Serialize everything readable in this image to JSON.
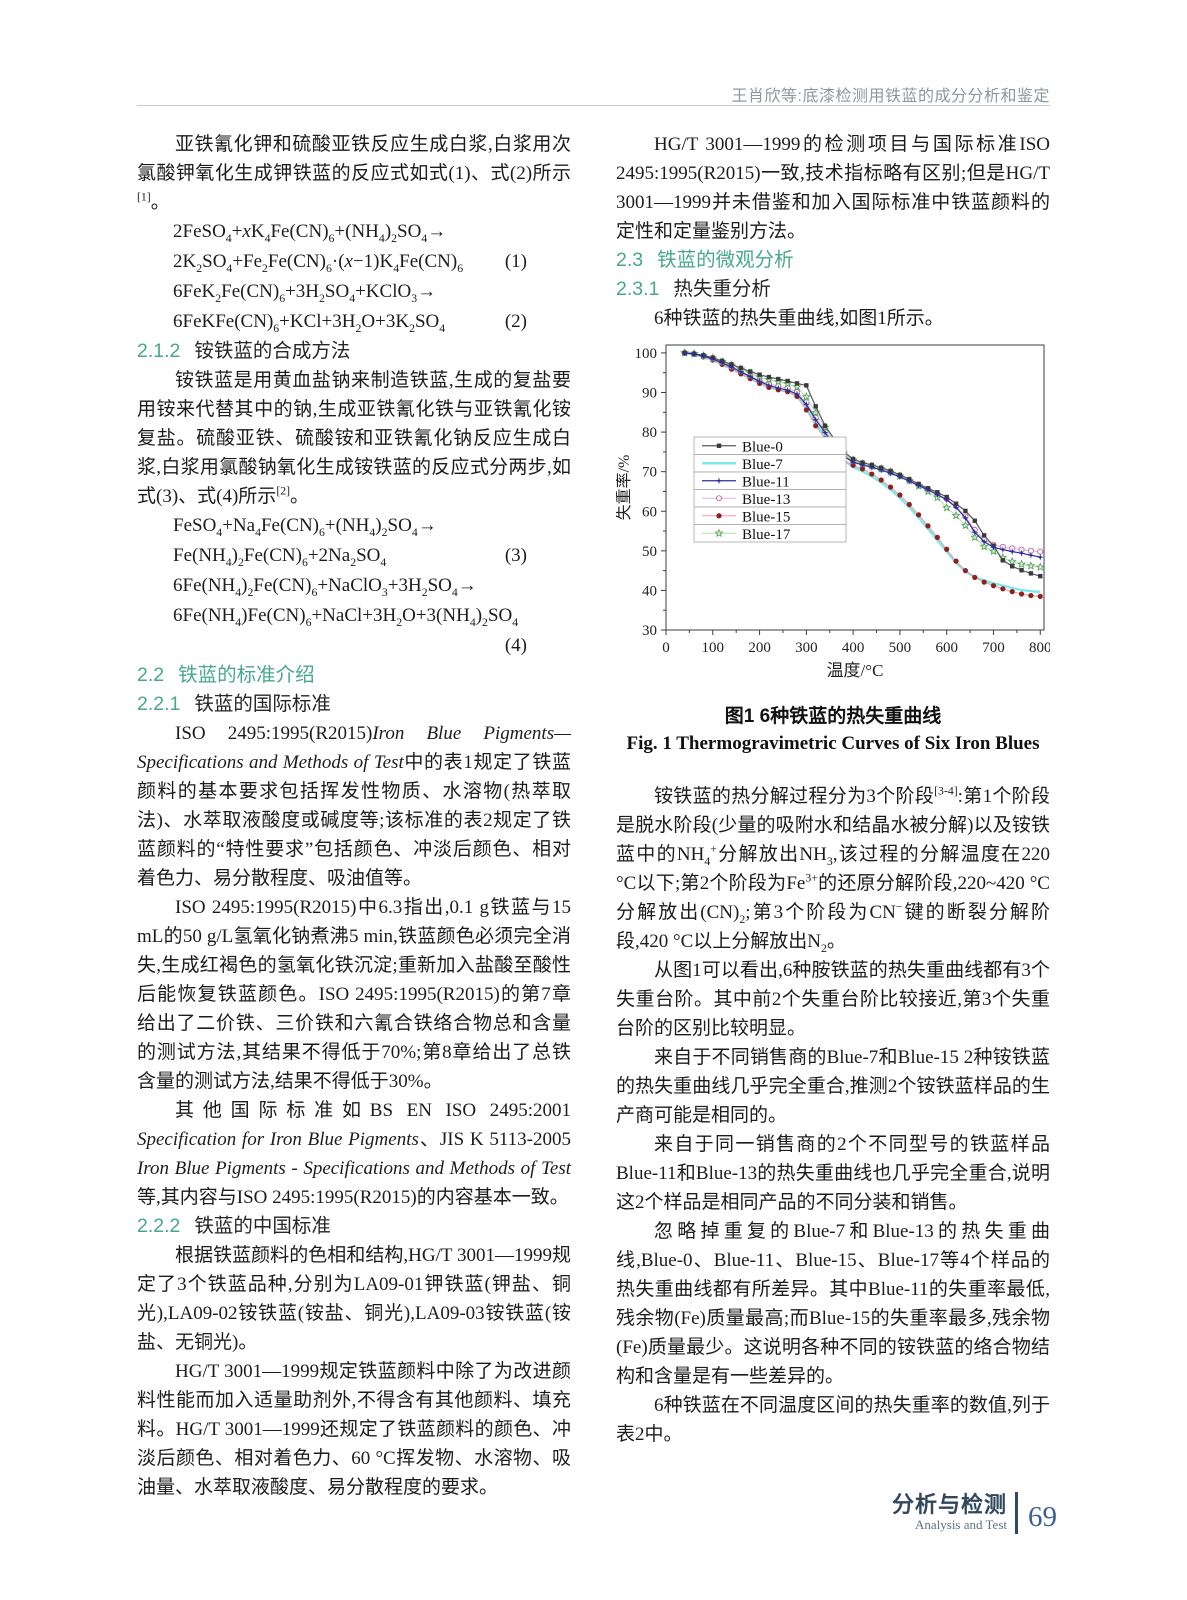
{
  "header": {
    "running_head": "王肖欣等:底漆检测用铁蓝的成分分析和鉴定"
  },
  "left": {
    "p_intro": "亚铁氰化钾和硫酸亚铁反应生成白浆,白浆用次氯酸钾氧化生成钾铁蓝的反应式如式(1)、式(2)所示<sup>[1]</sup>。",
    "eqA": [
      {
        "body": "2FeSO<sub>4</sub>+<i>x</i>K<sub>4</sub>Fe(CN)<sub>6</sub>+(NH<sub>4</sub>)<sub>2</sub>SO<sub>4</sub>→",
        "num": ""
      },
      {
        "body": "2K<sub>2</sub>SO<sub>4</sub>+Fe<sub>2</sub>Fe(CN)<sub>6</sub>·(<i>x</i>−1)K<sub>4</sub>Fe(CN)<sub>6</sub>",
        "num": "(1)"
      },
      {
        "body": "6FeK<sub>2</sub>Fe(CN)<sub>6</sub>+3H<sub>2</sub>SO<sub>4</sub>+KClO<sub>3</sub>→",
        "num": ""
      },
      {
        "body": "6FeKFe(CN)<sub>6</sub>+KCl+3H<sub>2</sub>O+3K<sub>2</sub>SO<sub>4</sub>",
        "num": "(2)"
      }
    ],
    "sec212": {
      "num": "2.1.2",
      "title": "铵铁蓝的合成方法"
    },
    "p_212": "铵铁蓝是用黄血盐钠来制造铁蓝,生成的复盐要用铵来代替其中的钠,生成亚铁氰化铁与亚铁氰化铵复盐。硫酸亚铁、硫酸铵和亚铁氰化钠反应生成白浆,白浆用氯酸钠氧化生成铵铁蓝的反应式分两步,如式(3)、式(4)所示<sup>[2]</sup>。",
    "eqB": [
      {
        "body": "FeSO<sub>4</sub>+Na<sub>4</sub>Fe(CN)<sub>6</sub>+(NH<sub>4</sub>)<sub>2</sub>SO<sub>4</sub>→",
        "num": ""
      },
      {
        "body": "Fe(NH<sub>4</sub>)<sub>2</sub>Fe(CN)<sub>6</sub>+2Na<sub>2</sub>SO<sub>4</sub>",
        "num": "(3)"
      },
      {
        "body": "6Fe(NH<sub>4</sub>)<sub>2</sub>Fe(CN)<sub>6</sub>+NaClO<sub>3</sub>+3H<sub>2</sub>SO<sub>4</sub>→",
        "num": ""
      },
      {
        "body": "6Fe(NH<sub>4</sub>)Fe(CN)<sub>6</sub>+NaCl+3H<sub>2</sub>O+3(NH<sub>4</sub>)<sub>2</sub>SO<sub>4</sub>",
        "num": ""
      },
      {
        "body": "",
        "num": "(4)"
      }
    ],
    "sec22": {
      "num": "2.2",
      "title": "铁蓝的标准介绍"
    },
    "sec221": {
      "num": "2.2.1",
      "title": "铁蓝的国际标准"
    },
    "p_iso1": "ISO 2495:1995(R2015)<i>Iron Blue Pigments—Specifications and Methods of Test</i>中的表1规定了铁蓝颜料的基本要求包括挥发性物质、水溶物(热萃取法)、水萃取液酸度或碱度等;该标准的表2规定了铁蓝颜料的“特性要求”包括颜色、冲淡后颜色、相对着色力、易分散程度、吸油值等。",
    "p_iso2": "ISO 2495:1995(R2015)中6.3指出,0.1 g铁蓝与15 mL的50 g/L氢氧化钠煮沸5 min,铁蓝颜色必须完全消失,生成红褐色的氢氧化铁沉淀;重新加入盐酸至酸性后能恢复铁蓝颜色。ISO 2495:1995(R2015)的第7章给出了二价铁、三价铁和六氰合铁络合物总和含量的测试方法,其结果不得低于70%;第8章给出了总铁含量的测试方法,结果不得低于30%。",
    "p_iso3": "其他国际标准如BS EN ISO 2495:2001 <i>Specification for Iron Blue Pigments</i>、JIS K 5113-2005 <i>Iron Blue Pigments - Specifications and Methods of Test</i>等,其内容与ISO 2495:1995(R2015)的内容基本一致。",
    "sec222": {
      "num": "2.2.2",
      "title": "铁蓝的中国标准"
    },
    "p_cn1": "根据铁蓝颜料的色相和结构,HG/T 3001—1999规定了3个铁蓝品种,分别为LA09-01钾铁蓝(钾盐、铜光),LA09-02铵铁蓝(铵盐、铜光),LA09-03铵铁蓝(铵盐、无铜光)。",
    "p_cn2": "HG/T 3001—1999规定铁蓝颜料中除了为改进颜料性能而加入适量助剂外,不得含有其他颜料、填充料。HG/T 3001—1999还规定了铁蓝颜料的颜色、冲淡后颜色、相对着色力、60 °C挥发物、水溶物、吸油量、水萃取液酸度、易分散程度的要求。"
  },
  "right": {
    "p_hgt": "HG/T 3001—1999的检测项目与国际标准ISO 2495:1995(R2015)一致,技术指标略有区别;但是HG/T 3001—1999并未借鉴和加入国际标准中铁蓝颜料的定性和定量鉴别方法。",
    "sec23": {
      "num": "2.3",
      "title": "铁蓝的微观分析"
    },
    "sec231": {
      "num": "2.3.1",
      "title": "热失重分析"
    },
    "p_fig_intro": "6种铁蓝的热失重曲线,如图1所示。",
    "figure": {
      "caption_cn": "图1  6种铁蓝的热失重曲线",
      "caption_en": "Fig. 1   Thermogravimetric Curves of Six Iron Blues"
    },
    "p_stage": "铵铁蓝的热分解过程分为3个阶段<sup>[3-4]</sup>:第1个阶段是脱水阶段(少量的吸附水和结晶水被分解)以及铵铁蓝中的NH<sub>4</sub><sup>+</sup>分解放出NH<sub>3</sub>,该过程的分解温度在220 °C以下;第2个阶段为Fe<sup>3+</sup>的还原分解阶段,220~420 °C分解放出(CN)<sub>2</sub>;第3个阶段为CN<sup>−</sup>键的断裂分解阶段,420 °C以上分解放出N<sub>2</sub>。",
    "p_steps": "从图1可以看出,6种胺铁蓝的热失重曲线都有3个失重台阶。其中前2个失重台阶比较接近,第3个失重台阶的区别比较明显。",
    "p_vendor": "来自于不同销售商的Blue-7和Blue-15 2种铵铁蓝的热失重曲线几乎完全重合,推测2个铵铁蓝样品的生产商可能是相同的。",
    "p_same": "来自于同一销售商的2个不同型号的铁蓝样品Blue-11和Blue-13的热失重曲线也几乎完全重合,说明这2个样品是相同产品的不同分装和销售。",
    "p_diff": "忽略掉重复的Blue-7和Blue-13的热失重曲线,Blue-0、Blue-11、Blue-15、Blue-17等4个样品的热失重曲线都有所差异。其中Blue-11的失重率最低,残余物(Fe)质量最高;而Blue-15的失重率最多,残余物(Fe)质量最少。这说明各种不同的铵铁蓝的络合物结构和含量是有一些差异的。",
    "p_table": "6种铁蓝在不同温度区间的热失重率的数值,列于表2中。"
  },
  "chart_data": {
    "type": "line",
    "title": "",
    "xlabel": "温度/°C",
    "ylabel": "失重率/%",
    "xlim": [
      0,
      800
    ],
    "ylim": [
      30,
      100
    ],
    "x_ticks": [
      0,
      100,
      200,
      300,
      400,
      500,
      600,
      700,
      800
    ],
    "y_ticks": [
      30,
      40,
      50,
      60,
      70,
      80,
      90,
      100
    ],
    "grid": false,
    "legend_position": "inside-left",
    "x": [
      40,
      60,
      80,
      100,
      120,
      140,
      160,
      180,
      200,
      220,
      240,
      260,
      280,
      300,
      320,
      340,
      360,
      380,
      400,
      420,
      440,
      460,
      480,
      500,
      520,
      540,
      560,
      580,
      600,
      620,
      640,
      660,
      680,
      700,
      720,
      740,
      760,
      780,
      800
    ],
    "series": [
      {
        "name": "Blue-0",
        "line_color": "#5a5a5a",
        "marker": "square-filled",
        "marker_color": "#3a3a3a",
        "width": 1.2,
        "values": [
          100,
          99.8,
          99.4,
          98.8,
          98.0,
          97.1,
          96.2,
          95.3,
          94.5,
          93.9,
          93.4,
          92.9,
          92.3,
          91.8,
          86.5,
          81.6,
          78.2,
          75.0,
          73.2,
          72.3,
          71.7,
          71.0,
          70.2,
          69.2,
          68.1,
          66.9,
          65.8,
          64.8,
          63.6,
          61.9,
          60.1,
          57.6,
          53.9,
          51.3,
          47.6,
          46.1,
          45.1,
          44.3,
          43.6
        ]
      },
      {
        "name": "Blue-7",
        "line_color": "#7ce9ef",
        "marker": "none",
        "marker_color": "#7ce9ef",
        "width": 2.4,
        "values": [
          100,
          99.6,
          99.0,
          98.2,
          97.1,
          95.9,
          94.7,
          93.5,
          92.3,
          91.3,
          90.7,
          90.2,
          89.3,
          86.0,
          82.2,
          78.9,
          75.6,
          72.9,
          71.2,
          70.1,
          68.8,
          67.3,
          65.5,
          63.4,
          61.0,
          58.4,
          55.6,
          52.7,
          49.8,
          47.0,
          44.8,
          43.4,
          42.5,
          41.8,
          41.2,
          40.6,
          40.1,
          39.8,
          39.6
        ]
      },
      {
        "name": "Blue-11",
        "line_color": "#2d2d99",
        "marker": "star4-filled",
        "marker_color": "#2d2d99",
        "width": 1.2,
        "values": [
          100,
          99.7,
          99.2,
          98.5,
          97.5,
          96.4,
          95.2,
          94.0,
          92.8,
          91.8,
          91.1,
          90.6,
          89.6,
          87.0,
          83.1,
          79.9,
          76.6,
          73.9,
          72.4,
          71.7,
          71.1,
          70.4,
          69.6,
          68.7,
          67.6,
          66.5,
          65.4,
          64.2,
          62.9,
          61.0,
          58.3,
          54.7,
          52.3,
          50.9,
          50.3,
          49.8,
          49.4,
          48.9,
          48.4
        ]
      },
      {
        "name": "Blue-13",
        "line_color": "#dcb8dc",
        "marker": "circle-open",
        "marker_color": "#c263a3",
        "width": 1.1,
        "values": [
          100,
          99.7,
          99.2,
          98.5,
          97.6,
          96.5,
          95.4,
          94.2,
          93.1,
          92.2,
          91.6,
          91.1,
          90.1,
          87.5,
          83.6,
          80.4,
          77.0,
          74.2,
          72.7,
          71.9,
          71.3,
          70.6,
          69.8,
          68.9,
          67.8,
          66.7,
          65.6,
          64.4,
          63.1,
          61.3,
          58.7,
          55.3,
          52.9,
          51.5,
          51.0,
          50.6,
          50.3,
          50.0,
          49.8
        ]
      },
      {
        "name": "Blue-15",
        "line_color": "#eda0a0",
        "marker": "circle-filled",
        "marker_color": "#8e2020",
        "width": 1.1,
        "values": [
          100,
          99.6,
          99.0,
          98.2,
          97.1,
          95.9,
          94.7,
          93.5,
          92.3,
          91.3,
          90.7,
          90.2,
          89.0,
          85.6,
          81.6,
          78.4,
          75.2,
          72.6,
          71.6,
          70.7,
          69.4,
          67.9,
          66.1,
          64.1,
          61.7,
          59.1,
          56.3,
          53.4,
          50.4,
          47.4,
          45.0,
          43.3,
          42.1,
          41.2,
          40.4,
          39.7,
          39.1,
          38.7,
          38.5
        ]
      },
      {
        "name": "Blue-17",
        "line_color": "#b2dcb6",
        "marker": "star5-open",
        "marker_color": "#5ba45b",
        "width": 1.1,
        "values": [
          100,
          99.8,
          99.3,
          98.7,
          97.8,
          96.9,
          95.9,
          94.9,
          93.9,
          93.2,
          92.7,
          92.2,
          91.4,
          88.9,
          84.9,
          81.2,
          77.7,
          74.7,
          72.9,
          72.0,
          71.4,
          70.7,
          69.9,
          68.9,
          67.7,
          66.4,
          65.0,
          63.5,
          60.9,
          58.9,
          56.4,
          53.4,
          51.1,
          49.9,
          48.3,
          47.3,
          46.6,
          46.2,
          45.9
        ]
      }
    ]
  },
  "footer": {
    "journal_cn": "分析与检测",
    "journal_en": "Analysis and Test",
    "page_number": "69"
  }
}
